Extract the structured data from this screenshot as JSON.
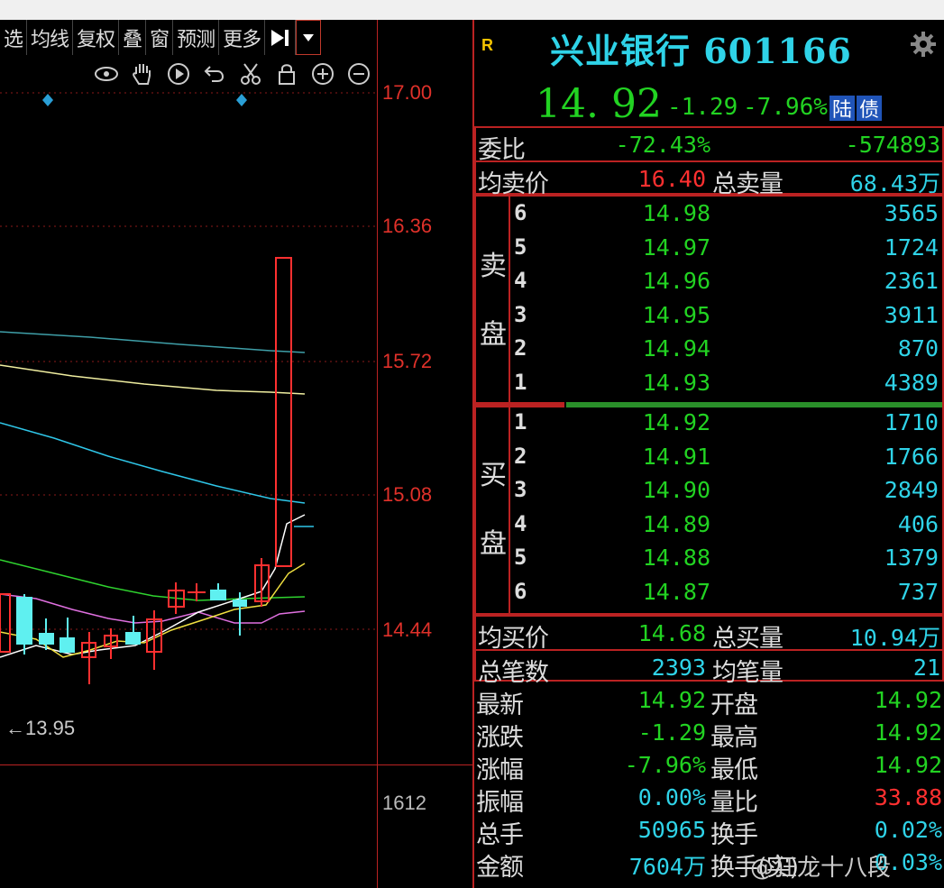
{
  "toolbar": {
    "buttons": [
      "选",
      "均线",
      "复权",
      "叠",
      "窗",
      "预测",
      "更多"
    ]
  },
  "chart": {
    "price_axis": [
      "17.00",
      "16.36",
      "15.72",
      "15.08",
      "14.44"
    ],
    "low_marker": "13.95",
    "volume_axis": "1612",
    "icons": [
      "eye-icon",
      "hand-icon",
      "play-icon",
      "undo-icon",
      "scissors-icon",
      "lock-icon",
      "zoom-in-icon",
      "zoom-out-icon"
    ]
  },
  "stock": {
    "badge": "R",
    "name": "兴业银行 601166",
    "price": "14. 92",
    "change": "-1.29",
    "change_pct": "-7.96%",
    "tags": [
      "陆",
      "债"
    ]
  },
  "stats_top": {
    "weibi_label": "委比",
    "weibi_pct": "-72.43%",
    "weibi_diff": "-574893",
    "avg_sell_label": "均卖价",
    "avg_sell": "16.40",
    "total_sell_label": "总卖量",
    "total_sell": "68.43万"
  },
  "sell_side": {
    "label_1": "卖",
    "label_2": "盘",
    "levels": [
      {
        "lvl": "6",
        "price": "14.98",
        "vol": "3565"
      },
      {
        "lvl": "5",
        "price": "14.97",
        "vol": "1724"
      },
      {
        "lvl": "4",
        "price": "14.96",
        "vol": "2361"
      },
      {
        "lvl": "3",
        "price": "14.95",
        "vol": "3911"
      },
      {
        "lvl": "2",
        "price": "14.94",
        "vol": "870"
      },
      {
        "lvl": "1",
        "price": "14.93",
        "vol": "4389"
      }
    ]
  },
  "buy_side": {
    "label_1": "买",
    "label_2": "盘",
    "levels": [
      {
        "lvl": "1",
        "price": "14.92",
        "vol": "1710"
      },
      {
        "lvl": "2",
        "price": "14.91",
        "vol": "1766"
      },
      {
        "lvl": "3",
        "price": "14.90",
        "vol": "2849"
      },
      {
        "lvl": "4",
        "price": "14.89",
        "vol": "406"
      },
      {
        "lvl": "5",
        "price": "14.88",
        "vol": "1379"
      },
      {
        "lvl": "6",
        "price": "14.87",
        "vol": "737"
      }
    ]
  },
  "stats_mid": {
    "avg_buy_label": "均买价",
    "avg_buy": "14.68",
    "total_buy_label": "总买量",
    "total_buy": "10.94万",
    "trades_label": "总笔数",
    "trades": "2393",
    "avg_trade_label": "均笔量",
    "avg_trade": "21"
  },
  "quote": [
    {
      "l1": "最新",
      "v1": "14.92",
      "c1": "g",
      "l2": "开盘",
      "v2": "14.92",
      "c2": "g"
    },
    {
      "l1": "涨跌",
      "v1": "-1.29",
      "c1": "g",
      "l2": "最高",
      "v2": "14.92",
      "c2": "g"
    },
    {
      "l1": "涨幅",
      "v1": "-7.96%",
      "c1": "g",
      "l2": "最低",
      "v2": "14.92",
      "c2": "g"
    },
    {
      "l1": "振幅",
      "v1": "0.00%",
      "c1": "c",
      "l2": "量比",
      "v2": "33.88",
      "c2": "r"
    },
    {
      "l1": "总手",
      "v1": "50965",
      "c1": "c",
      "l2": "换手",
      "v2": "0.02%",
      "c2": "c"
    },
    {
      "l1": "金额",
      "v1": "7604万",
      "c1": "c",
      "l2": "换手(实)",
      "v2": "0.03%",
      "c2": "c"
    }
  ],
  "watermark": "@狂龙十八段",
  "colors": {
    "up": "#ff3030",
    "down": "#22d322",
    "cyan": "#2fd3e8",
    "border": "#bb2222"
  }
}
